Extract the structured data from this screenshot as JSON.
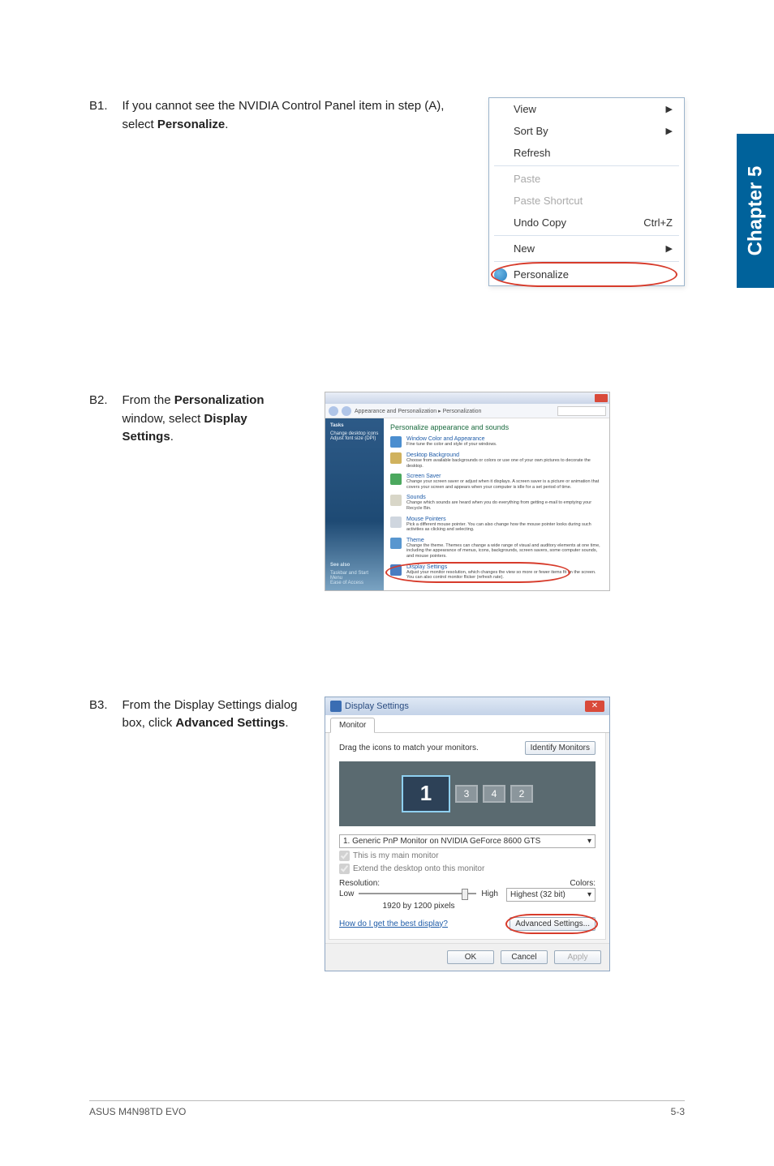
{
  "side_tab": "Chapter 5",
  "steps": {
    "b1": {
      "num": "B1.",
      "text_before": "If you cannot see the NVIDIA Control Panel item in step (A), select ",
      "text_bold": "Personalize",
      "text_after": "."
    },
    "b2": {
      "num": "B2.",
      "text_before": "From the ",
      "text_bold1": "Personalization",
      "text_mid": " window, select ",
      "text_bold2": "Display Settings",
      "text_after": "."
    },
    "b3": {
      "num": "B3.",
      "text_before": "From the Display Settings dialog box, click ",
      "text_bold": "Advanced Settings",
      "text_after": "."
    }
  },
  "context_menu": {
    "items": [
      {
        "label": "View",
        "arrow": true
      },
      {
        "label": "Sort By",
        "arrow": true
      },
      {
        "label": "Refresh"
      },
      {
        "sep": true
      },
      {
        "label": "Paste",
        "disabled": true
      },
      {
        "label": "Paste Shortcut",
        "disabled": true
      },
      {
        "label": "Undo Copy",
        "shortcut": "Ctrl+Z"
      },
      {
        "sep": true
      },
      {
        "label": "New",
        "arrow": true
      },
      {
        "sep": true
      },
      {
        "label": "Personalize",
        "circled": true,
        "icon": true
      }
    ]
  },
  "personalization": {
    "breadcrumb": "Appearance and Personalization  ▸  Personalization",
    "search_placeholder": "Search",
    "side": {
      "title": "Tasks",
      "items": [
        "Change desktop icons",
        "Adjust font size (DPI)"
      ],
      "seealso": "See also",
      "seealso_items": [
        "Taskbar and Start Menu",
        "Ease of Access"
      ]
    },
    "heading": "Personalize appearance and sounds",
    "entries": [
      {
        "t": "Window Color and Appearance",
        "d": "Fine tune the color and style of your windows.",
        "cls": ""
      },
      {
        "t": "Desktop Background",
        "d": "Choose from available backgrounds or colors or use one of your own pictures to decorate the desktop.",
        "cls": "pic"
      },
      {
        "t": "Screen Saver",
        "d": "Change your screen saver or adjust when it displays. A screen saver is a picture or animation that covers your screen and appears when your computer is idle for a set period of time.",
        "cls": "scr"
      },
      {
        "t": "Sounds",
        "d": "Change which sounds are heard when you do everything from getting e-mail to emptying your Recycle Bin.",
        "cls": "snd"
      },
      {
        "t": "Mouse Pointers",
        "d": "Pick a different mouse pointer. You can also change how the mouse pointer looks during such activities as clicking and selecting.",
        "cls": "mouse"
      },
      {
        "t": "Theme",
        "d": "Change the theme. Themes can change a wide range of visual and auditory elements at one time, including the appearance of menus, icons, backgrounds, screen savers, some computer sounds, and mouse pointers.",
        "cls": "theme"
      },
      {
        "t": "Display Settings",
        "d": "Adjust your monitor resolution, which changes the view so more or fewer items fit on the screen. You can also control monitor flicker (refresh rate).",
        "cls": "disp",
        "ringed": true
      }
    ]
  },
  "display_settings": {
    "title": "Display Settings",
    "tab": "Monitor",
    "drag_text": "Drag the icons to match your monitors.",
    "identify_btn": "Identify Monitors",
    "monitors": [
      "1",
      "3",
      "4",
      "2"
    ],
    "monitor_select": "1. Generic PnP Monitor on NVIDIA GeForce 8600 GTS",
    "chk_main": "This is my main monitor",
    "chk_extend": "Extend the desktop onto this monitor",
    "resolution_label": "Resolution:",
    "colors_label": "Colors:",
    "low": "Low",
    "high": "High",
    "colors_value": "Highest (32 bit)",
    "res_value": "1920 by 1200 pixels",
    "help_link": "How do I get the best display?",
    "advanced_btn": "Advanced Settings...",
    "ok": "OK",
    "cancel": "Cancel",
    "apply": "Apply"
  },
  "footer": {
    "left": "ASUS M4N98TD EVO",
    "right": "5-3"
  }
}
